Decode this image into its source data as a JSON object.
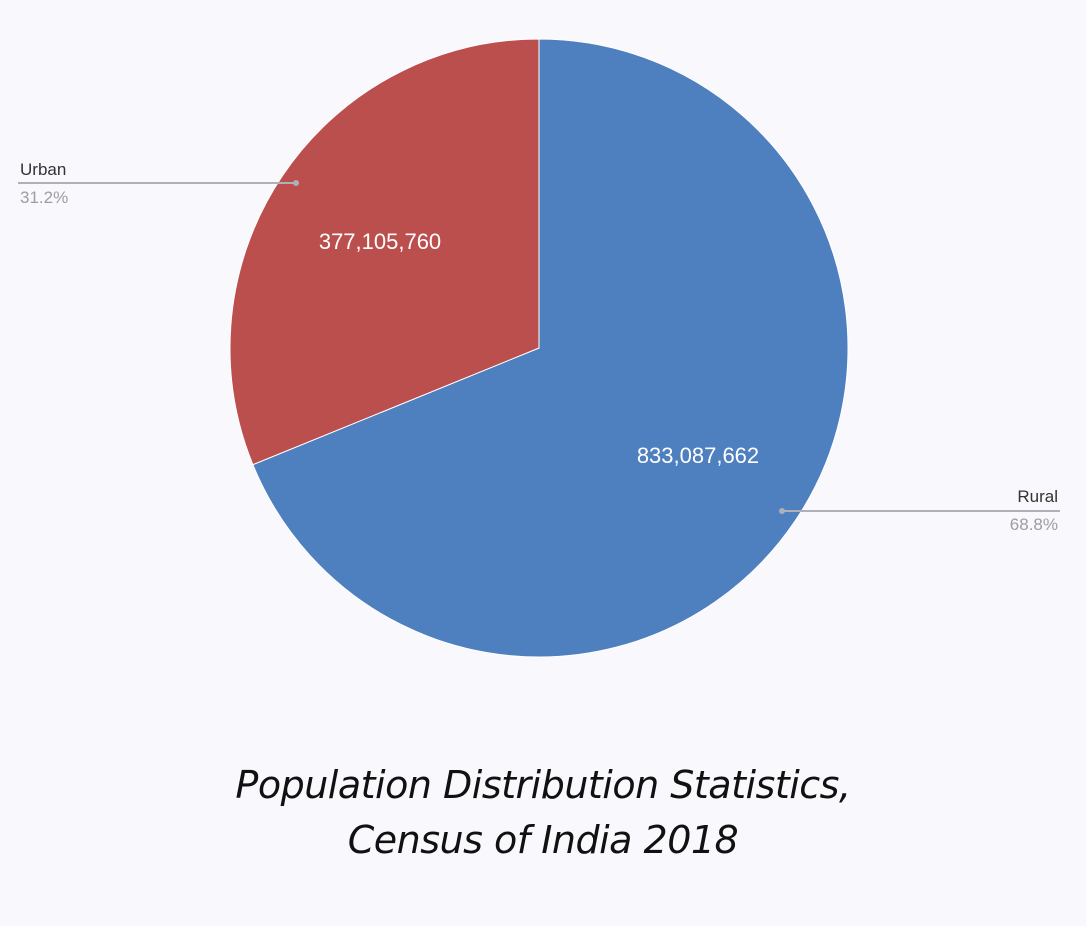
{
  "chart_data": {
    "type": "pie",
    "title_lines": [
      "Population Distribution Statistics,",
      "Census of India 2018"
    ],
    "slices": [
      {
        "name": "Rural",
        "value": 833087662,
        "value_label": "833,087,662",
        "percent_label": "68.8%",
        "color": "#4e7fbf"
      },
      {
        "name": "Urban",
        "value": 377105760,
        "value_label": "377,105,760",
        "percent_label": "31.2%",
        "color": "#bb4f4d"
      }
    ],
    "legend_placement": "callouts"
  },
  "colors": {
    "background": "#f8f8fd",
    "leader_line": "#b0b0b8"
  }
}
